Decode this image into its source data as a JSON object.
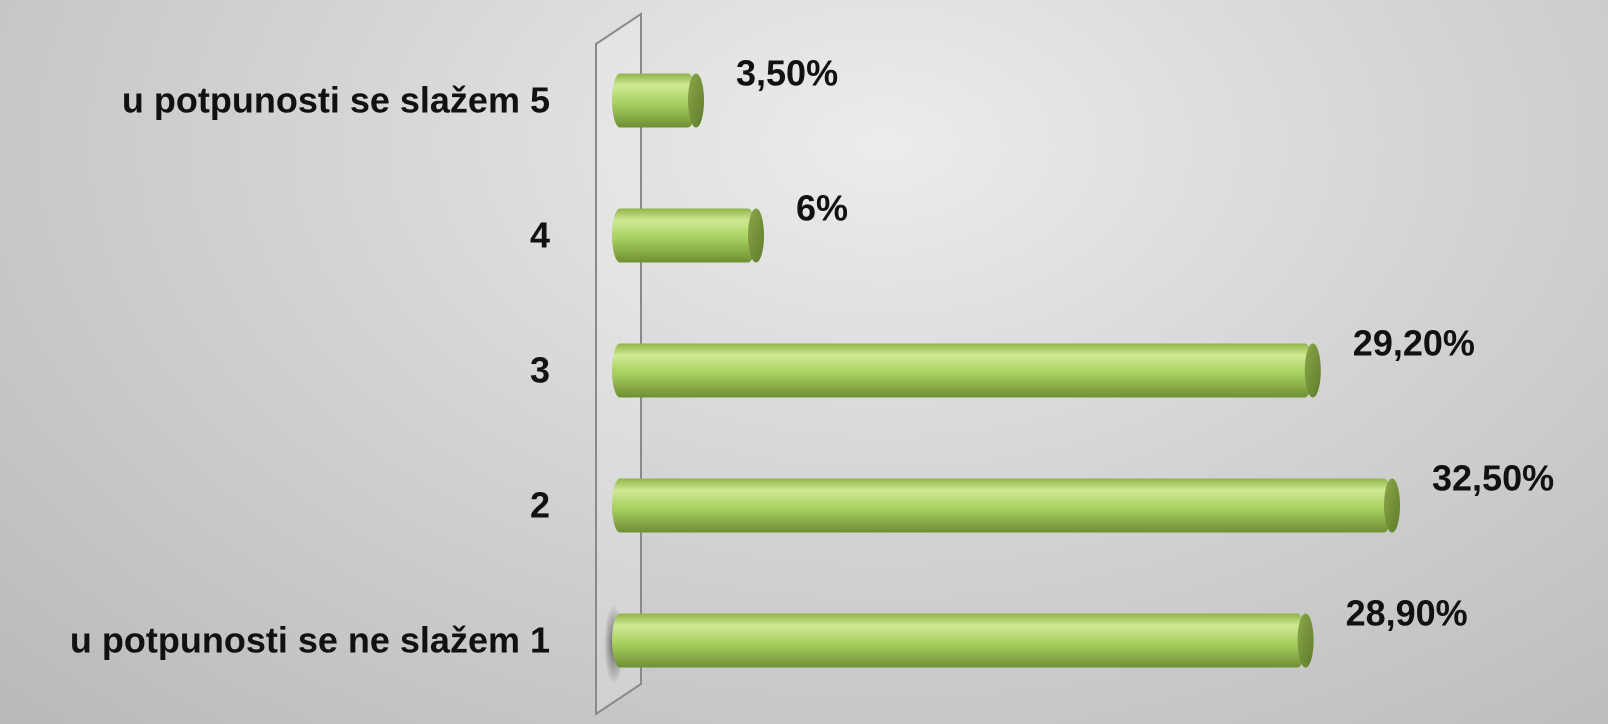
{
  "chart_data": {
    "type": "bar",
    "orientation": "horizontal",
    "categories": [
      "u potpunosti se slažem 5",
      "4",
      "3",
      "2",
      "u potpunosti se ne slažem 1"
    ],
    "values": [
      3.5,
      6,
      29.2,
      32.5,
      28.9
    ],
    "data_labels": [
      "3,50%",
      "6%",
      "29,20%",
      "32,50%",
      "28,90%"
    ],
    "title": "",
    "xlabel": "",
    "ylabel": "",
    "xlim": [
      0,
      32.5
    ],
    "grid": false,
    "legend": "none",
    "colors": {
      "bar": "#a6cf5e",
      "bar_light": "#cfe993",
      "bar_dark": "#6f8f34",
      "text": "#111111"
    }
  }
}
